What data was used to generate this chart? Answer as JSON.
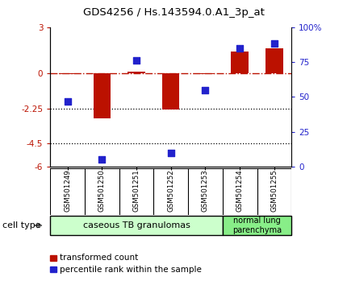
{
  "title": "GDS4256 / Hs.143594.0.A1_3p_at",
  "samples": [
    "GSM501249",
    "GSM501250",
    "GSM501251",
    "GSM501252",
    "GSM501253",
    "GSM501254",
    "GSM501255"
  ],
  "transformed_count": [
    -0.05,
    -2.9,
    0.15,
    -2.3,
    -0.05,
    1.4,
    1.65
  ],
  "percentile_rank": [
    47,
    5,
    76,
    10,
    55,
    85,
    88
  ],
  "ylim_left": [
    -6,
    3
  ],
  "ylim_right": [
    0,
    100
  ],
  "yticks_left": [
    -6,
    -4.5,
    -2.25,
    0,
    3
  ],
  "ytick_labels_left": [
    "-6",
    "-4.5",
    "-2.25",
    "0",
    "3"
  ],
  "yticks_right": [
    0,
    25,
    50,
    75,
    100
  ],
  "ytick_labels_right": [
    "0",
    "25",
    "50",
    "75",
    "100%"
  ],
  "dotted_lines": [
    -2.25,
    -4.5
  ],
  "bar_color": "#bb1100",
  "dot_color": "#2222cc",
  "group1_label": "caseous TB granulomas",
  "group2_label": "normal lung\nparenchyma",
  "cell_type_label": "cell type",
  "legend_bar_label": "transformed count",
  "legend_dot_label": "percentile rank within the sample",
  "background_color": "#ffffff",
  "group1_color": "#ccffcc",
  "group2_color": "#88ee88",
  "sample_box_color": "#cccccc"
}
